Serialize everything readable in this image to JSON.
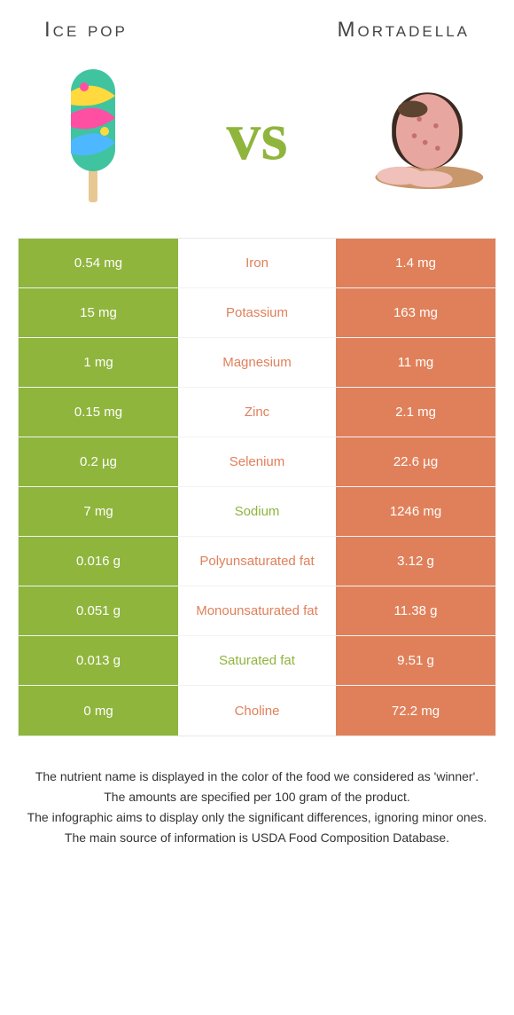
{
  "header": {
    "left_title": "Ice pop",
    "right_title": "Mortadella",
    "vs_text": "vs",
    "vs_color": "#8fb53d"
  },
  "colors": {
    "left_food": "#8fb53d",
    "right_food": "#e0805a",
    "background": "#ffffff",
    "border": "#e8e8e8"
  },
  "rows": [
    {
      "left": "0.54 mg",
      "name": "Iron",
      "right": "1.4 mg",
      "winner": "right"
    },
    {
      "left": "15 mg",
      "name": "Potassium",
      "right": "163 mg",
      "winner": "right"
    },
    {
      "left": "1 mg",
      "name": "Magnesium",
      "right": "11 mg",
      "winner": "right"
    },
    {
      "left": "0.15 mg",
      "name": "Zinc",
      "right": "2.1 mg",
      "winner": "right"
    },
    {
      "left": "0.2 µg",
      "name": "Selenium",
      "right": "22.6 µg",
      "winner": "right"
    },
    {
      "left": "7 mg",
      "name": "Sodium",
      "right": "1246 mg",
      "winner": "left"
    },
    {
      "left": "0.016 g",
      "name": "Polyunsaturated fat",
      "right": "3.12 g",
      "winner": "right"
    },
    {
      "left": "0.051 g",
      "name": "Monounsaturated fat",
      "right": "11.38 g",
      "winner": "right"
    },
    {
      "left": "0.013 g",
      "name": "Saturated fat",
      "right": "9.51 g",
      "winner": "left"
    },
    {
      "left": "0 mg",
      "name": "Choline",
      "right": "72.2 mg",
      "winner": "right"
    }
  ],
  "footer": {
    "line1": "The nutrient name is displayed in the color of the food we considered as 'winner'.",
    "line2": "The amounts are specified per 100 gram of the product.",
    "line3": "The infographic aims to display only the significant differences, ignoring minor ones.",
    "line4": "The main source of information is USDA Food Composition Database."
  }
}
